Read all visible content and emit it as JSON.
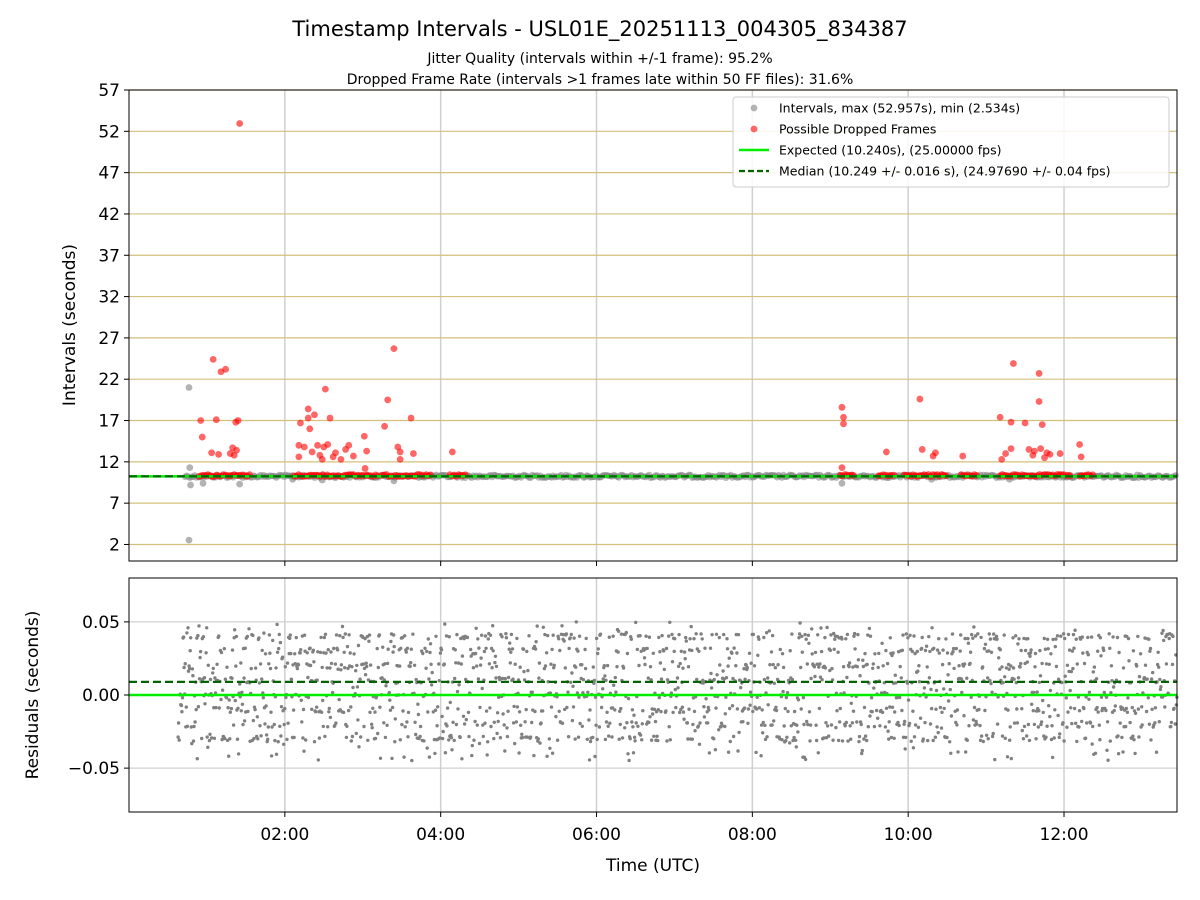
{
  "figure": {
    "title": "Timestamp Intervals - USL01E_20251113_004305_834387",
    "subtitle_line1": "Jitter Quality (intervals within +/-1 frame): 95.2%",
    "subtitle_line2": "Dropped Frame Rate (intervals >1 frames late within 50 FF files): 31.6%"
  },
  "colors": {
    "intervals": "#808080",
    "dropped": "#ff0000",
    "expected": "#00ee00",
    "median": "#006400",
    "gridline_h_top": "#d4c07a",
    "grid": "#d0d0d0"
  },
  "chart_data": [
    {
      "type": "scatter",
      "panel": "intervals",
      "ylabel": "Intervals (seconds)",
      "xlabel": "",
      "x_unit": "hours UTC",
      "xlim": [
        0.0,
        13.45
      ],
      "ylim": [
        0,
        57
      ],
      "yticks": [
        2,
        7,
        12,
        17,
        22,
        27,
        32,
        37,
        42,
        47,
        52,
        57
      ],
      "xticks": [
        2,
        4,
        6,
        8,
        10,
        12
      ],
      "xtick_labels": [
        "02:00",
        "04:00",
        "06:00",
        "08:00",
        "10:00",
        "12:00"
      ],
      "grid": true,
      "legend_position": "top-right",
      "series": [
        {
          "name": "Intervals, max (52.957s), min (2.534s)",
          "baseline_value": 10.25,
          "baseline_x_range": [
            0.72,
            13.45
          ],
          "outliers": [
            {
              "x": 0.77,
              "y": 21.0
            },
            {
              "x": 0.77,
              "y": 2.53
            },
            {
              "x": 0.78,
              "y": 11.3
            },
            {
              "x": 0.79,
              "y": 9.2
            },
            {
              "x": 0.95,
              "y": 9.4
            },
            {
              "x": 1.42,
              "y": 9.3
            },
            {
              "x": 2.1,
              "y": 9.9
            },
            {
              "x": 2.48,
              "y": 9.8
            },
            {
              "x": 3.4,
              "y": 9.7
            },
            {
              "x": 9.15,
              "y": 9.4
            },
            {
              "x": 10.3,
              "y": 9.9
            },
            {
              "x": 11.3,
              "y": 9.9
            }
          ]
        },
        {
          "name": "Possible Dropped Frames",
          "baseline_value": 10.35,
          "clusters": [
            [
              0.9,
              1.55
            ],
            [
              2.12,
              3.22
            ],
            [
              3.25,
              3.88
            ],
            [
              4.12,
              4.32
            ],
            [
              9.13,
              9.32
            ],
            [
              9.62,
              9.82
            ],
            [
              9.95,
              10.5
            ],
            [
              10.68,
              10.88
            ],
            [
              11.18,
              12.1
            ],
            [
              12.2,
              12.38
            ]
          ],
          "points": [
            {
              "x": 0.92,
              "y": 17.0
            },
            {
              "x": 0.94,
              "y": 15.0
            },
            {
              "x": 1.08,
              "y": 24.4
            },
            {
              "x": 1.12,
              "y": 17.1
            },
            {
              "x": 1.06,
              "y": 13.1
            },
            {
              "x": 1.15,
              "y": 12.9
            },
            {
              "x": 1.18,
              "y": 22.9
            },
            {
              "x": 1.24,
              "y": 23.2
            },
            {
              "x": 1.3,
              "y": 13.0
            },
            {
              "x": 1.33,
              "y": 13.7
            },
            {
              "x": 1.37,
              "y": 16.8
            },
            {
              "x": 1.4,
              "y": 17.0
            },
            {
              "x": 1.38,
              "y": 13.4
            },
            {
              "x": 1.35,
              "y": 12.8
            },
            {
              "x": 1.42,
              "y": 52.95
            },
            {
              "x": 2.18,
              "y": 12.6
            },
            {
              "x": 2.18,
              "y": 14.0
            },
            {
              "x": 2.2,
              "y": 16.7
            },
            {
              "x": 2.25,
              "y": 13.8
            },
            {
              "x": 2.3,
              "y": 17.3
            },
            {
              "x": 2.3,
              "y": 18.4
            },
            {
              "x": 2.32,
              "y": 16.0
            },
            {
              "x": 2.35,
              "y": 13.2
            },
            {
              "x": 2.38,
              "y": 17.7
            },
            {
              "x": 2.42,
              "y": 14.0
            },
            {
              "x": 2.45,
              "y": 12.8
            },
            {
              "x": 2.48,
              "y": 12.3
            },
            {
              "x": 2.5,
              "y": 13.8
            },
            {
              "x": 2.52,
              "y": 20.8
            },
            {
              "x": 2.55,
              "y": 14.1
            },
            {
              "x": 2.58,
              "y": 17.3
            },
            {
              "x": 2.62,
              "y": 12.6
            },
            {
              "x": 2.65,
              "y": 13.1
            },
            {
              "x": 2.72,
              "y": 12.3
            },
            {
              "x": 2.78,
              "y": 13.5
            },
            {
              "x": 2.82,
              "y": 14.0
            },
            {
              "x": 2.88,
              "y": 12.7
            },
            {
              "x": 3.02,
              "y": 15.1
            },
            {
              "x": 3.05,
              "y": 13.3
            },
            {
              "x": 3.03,
              "y": 11.2
            },
            {
              "x": 3.28,
              "y": 16.3
            },
            {
              "x": 3.32,
              "y": 19.5
            },
            {
              "x": 3.4,
              "y": 25.7
            },
            {
              "x": 3.45,
              "y": 13.8
            },
            {
              "x": 3.48,
              "y": 13.2
            },
            {
              "x": 3.48,
              "y": 12.3
            },
            {
              "x": 3.62,
              "y": 17.3
            },
            {
              "x": 3.65,
              "y": 13.0
            },
            {
              "x": 4.15,
              "y": 13.2
            },
            {
              "x": 9.15,
              "y": 18.6
            },
            {
              "x": 9.17,
              "y": 17.4
            },
            {
              "x": 9.17,
              "y": 16.6
            },
            {
              "x": 9.15,
              "y": 11.3
            },
            {
              "x": 9.72,
              "y": 13.2
            },
            {
              "x": 10.15,
              "y": 19.6
            },
            {
              "x": 10.18,
              "y": 13.5
            },
            {
              "x": 10.32,
              "y": 12.7
            },
            {
              "x": 10.35,
              "y": 13.1
            },
            {
              "x": 10.7,
              "y": 12.7
            },
            {
              "x": 11.18,
              "y": 17.4
            },
            {
              "x": 11.2,
              "y": 12.3
            },
            {
              "x": 11.25,
              "y": 13.0
            },
            {
              "x": 11.32,
              "y": 13.6
            },
            {
              "x": 11.32,
              "y": 16.8
            },
            {
              "x": 11.35,
              "y": 23.9
            },
            {
              "x": 11.5,
              "y": 16.7
            },
            {
              "x": 11.55,
              "y": 13.5
            },
            {
              "x": 11.6,
              "y": 12.8
            },
            {
              "x": 11.62,
              "y": 13.3
            },
            {
              "x": 11.68,
              "y": 22.7
            },
            {
              "x": 11.68,
              "y": 19.3
            },
            {
              "x": 11.7,
              "y": 13.6
            },
            {
              "x": 11.72,
              "y": 16.5
            },
            {
              "x": 11.75,
              "y": 12.5
            },
            {
              "x": 11.78,
              "y": 13.1
            },
            {
              "x": 11.82,
              "y": 12.9
            },
            {
              "x": 11.95,
              "y": 13.0
            },
            {
              "x": 12.2,
              "y": 14.1
            },
            {
              "x": 12.22,
              "y": 12.6
            }
          ]
        },
        {
          "name": "Expected (10.240s), (25.00000 fps)",
          "type": "hline",
          "y": 10.24
        },
        {
          "name": "Median (10.249 +/- 0.016 s), (24.97690 +/- 0.04 fps)",
          "type": "hline-dashed",
          "y": 10.249
        }
      ]
    },
    {
      "type": "scatter",
      "panel": "residuals",
      "ylabel": "Residuals (seconds)",
      "xlabel": "Time (UTC)",
      "x_unit": "hours UTC",
      "xlim": [
        0.0,
        13.45
      ],
      "ylim": [
        -0.08,
        0.08
      ],
      "yticks": [
        -0.05,
        0.0,
        0.05
      ],
      "ytick_labels": [
        "−0.05",
        "0.00",
        "0.05"
      ],
      "xticks": [
        2,
        4,
        6,
        8,
        10,
        12
      ],
      "xtick_labels": [
        "02:00",
        "04:00",
        "06:00",
        "08:00",
        "10:00",
        "12:00"
      ],
      "grid": true,
      "residual_spread": {
        "x_range": [
          0.63,
          13.45
        ],
        "levels": [
          -0.03,
          -0.02,
          -0.01,
          0.0,
          0.01,
          0.02,
          0.03,
          0.04
        ],
        "range": [
          -0.045,
          0.055
        ]
      },
      "lines": [
        {
          "name": "Expected",
          "y": 0.0
        },
        {
          "name": "Median",
          "y": 0.009,
          "dashed": true
        }
      ]
    }
  ]
}
